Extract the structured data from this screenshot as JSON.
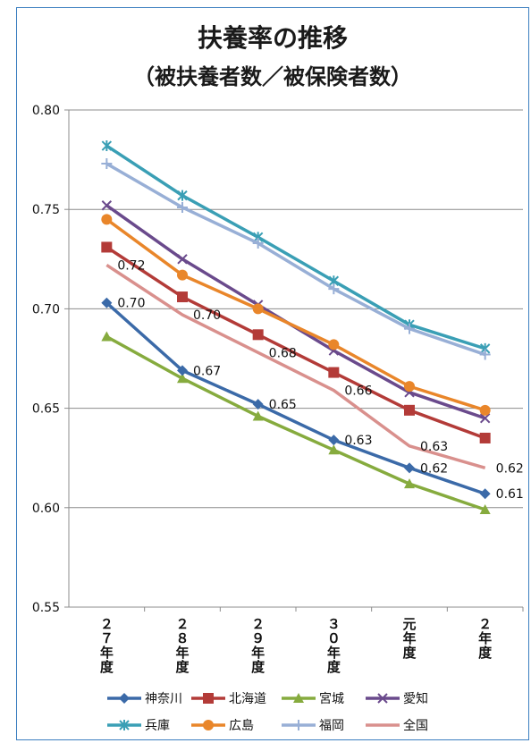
{
  "chart_data": {
    "type": "line",
    "title": "扶養率の推移",
    "subtitle": "（被扶養者数／被保険者数）",
    "categories": [
      "２７年度",
      "２８年度",
      "２９年度",
      "３０年度",
      "元年度",
      "２年度"
    ],
    "category_lines": [
      [
        "２",
        "７",
        "年",
        "度"
      ],
      [
        "２",
        "８",
        "年",
        "度"
      ],
      [
        "２",
        "９",
        "年",
        "度"
      ],
      [
        "３",
        "０",
        "年",
        "度"
      ],
      [
        "元",
        "年",
        "度"
      ],
      [
        "２",
        "年",
        "度"
      ]
    ],
    "ylim": [
      0.55,
      0.8
    ],
    "yticks": [
      "0.55",
      "0.60",
      "0.65",
      "0.70",
      "0.75",
      "0.80"
    ],
    "grid": true,
    "legend_position": "bottom",
    "series": [
      {
        "name": "神奈川",
        "color": "#3b6aa8",
        "marker": "diamond",
        "values": [
          0.703,
          0.669,
          0.652,
          0.634,
          0.62,
          0.607
        ],
        "labels": [
          "0.70",
          "0.67",
          "0.65",
          "0.63",
          "0.62",
          "0.61"
        ]
      },
      {
        "name": "北海道",
        "color": "#b33b38",
        "marker": "square",
        "values": [
          0.731,
          0.706,
          0.687,
          0.668,
          0.649,
          0.635
        ]
      },
      {
        "name": "宮城",
        "color": "#86ab3e",
        "marker": "triangle",
        "values": [
          0.686,
          0.665,
          0.646,
          0.629,
          0.612,
          0.599
        ]
      },
      {
        "name": "愛知",
        "color": "#6a4a8c",
        "marker": "x",
        "values": [
          0.752,
          0.725,
          0.702,
          0.679,
          0.658,
          0.645
        ]
      },
      {
        "name": "兵庫",
        "color": "#3a9fb5",
        "marker": "star",
        "values": [
          0.782,
          0.757,
          0.736,
          0.714,
          0.692,
          0.68
        ]
      },
      {
        "name": "広島",
        "color": "#e9862a",
        "marker": "circle",
        "values": [
          0.745,
          0.717,
          0.7,
          0.682,
          0.661,
          0.649
        ]
      },
      {
        "name": "福岡",
        "color": "#98afd6",
        "marker": "plus",
        "values": [
          0.773,
          0.751,
          0.733,
          0.71,
          0.69,
          0.677
        ]
      },
      {
        "name": "全国",
        "color": "#d9908d",
        "marker": "none",
        "values": [
          0.722,
          0.697,
          0.678,
          0.659,
          0.631,
          0.62
        ],
        "labels": [
          "0.72",
          "0.70",
          "0.68",
          "0.66",
          "0.63",
          "0.62"
        ]
      }
    ]
  }
}
